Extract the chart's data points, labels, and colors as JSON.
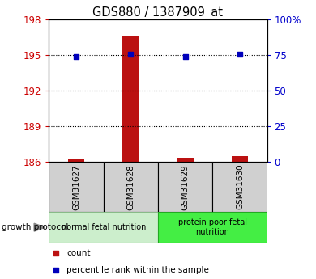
{
  "title": "GDS880 / 1387909_at",
  "samples": [
    "GSM31627",
    "GSM31628",
    "GSM31629",
    "GSM31630"
  ],
  "count_values": [
    186.3,
    196.6,
    186.35,
    186.5
  ],
  "percentile_values": [
    74.0,
    75.5,
    74.0,
    75.5
  ],
  "ylim_left": [
    186,
    198
  ],
  "ylim_right": [
    0,
    100
  ],
  "yticks_left": [
    186,
    189,
    192,
    195,
    198
  ],
  "yticks_right": [
    0,
    25,
    50,
    75,
    100
  ],
  "ytick_labels_right": [
    "0",
    "25",
    "50",
    "75",
    "100%"
  ],
  "bar_color": "#bb1111",
  "dot_color": "#0000bb",
  "groups": [
    {
      "label": "normal fetal nutrition",
      "samples": [
        0,
        1
      ],
      "color": "#cceecc",
      "border": "#88bb88"
    },
    {
      "label": "protein poor fetal\nnutrition",
      "samples": [
        2,
        3
      ],
      "color": "#44ee44",
      "border": "#22aa22"
    }
  ],
  "group_label": "growth protocol",
  "legend_items": [
    {
      "label": "count",
      "color": "#bb1111"
    },
    {
      "label": "percentile rank within the sample",
      "color": "#0000bb"
    }
  ],
  "left_tick_color": "#cc0000",
  "right_tick_color": "#0000cc",
  "bar_width": 0.3,
  "dot_size": 25,
  "sample_box_color": "#d0d0d0",
  "sample_box_border": "#888888"
}
